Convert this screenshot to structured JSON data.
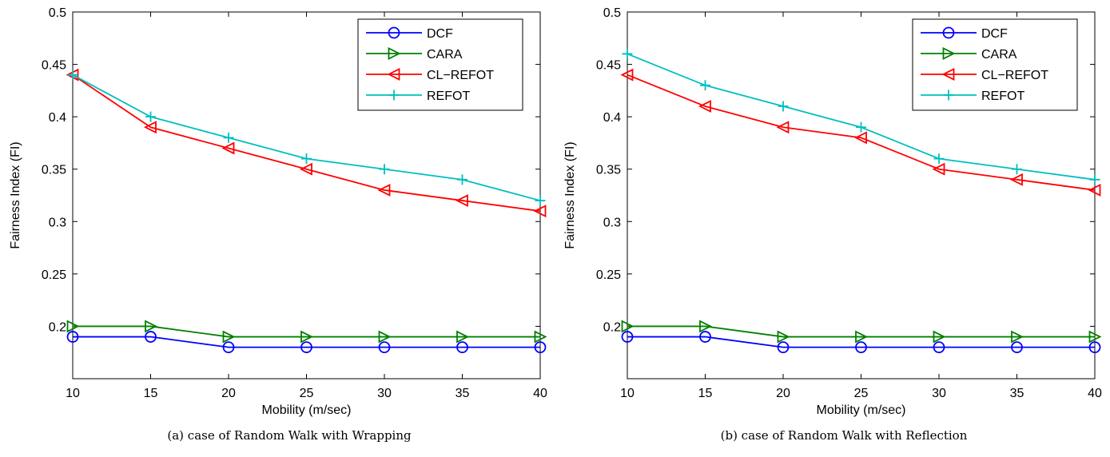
{
  "chart_data": [
    {
      "type": "line",
      "caption": "(a) case of Random Walk with Wrapping",
      "xlabel": "Mobility (m/sec)",
      "ylabel": "Fairness Index (FI)",
      "x": [
        10,
        15,
        20,
        25,
        30,
        35,
        40
      ],
      "xlim": [
        10,
        40
      ],
      "ylim": [
        0.15,
        0.5
      ],
      "xticks": [
        "10",
        "15",
        "20",
        "25",
        "30",
        "35",
        "40"
      ],
      "yticks": [
        "0.2",
        "0.25",
        "0.3",
        "0.35",
        "0.4",
        "0.45",
        "0.5"
      ],
      "ytick_values": [
        0.2,
        0.25,
        0.3,
        0.35,
        0.4,
        0.45,
        0.5
      ],
      "legend_position": "top-right",
      "series": [
        {
          "name": "DCF",
          "color": "#0000ff",
          "marker": "circle",
          "values": [
            0.19,
            0.19,
            0.18,
            0.18,
            0.18,
            0.18,
            0.18
          ]
        },
        {
          "name": "CARA",
          "color": "#008000",
          "marker": "triangle-right",
          "values": [
            0.2,
            0.2,
            0.19,
            0.19,
            0.19,
            0.19,
            0.19
          ]
        },
        {
          "name": "CL−REFOT",
          "color": "#ff0000",
          "marker": "triangle-left",
          "values": [
            0.44,
            0.39,
            0.37,
            0.35,
            0.33,
            0.32,
            0.31
          ]
        },
        {
          "name": "REFOT",
          "color": "#00bfbf",
          "marker": "plus",
          "values": [
            0.44,
            0.4,
            0.38,
            0.36,
            0.35,
            0.34,
            0.32
          ]
        }
      ]
    },
    {
      "type": "line",
      "caption": "(b) case of Random Walk with Reflection",
      "xlabel": "Mobility (m/sec)",
      "ylabel": "Fairness Index (FI)",
      "x": [
        10,
        15,
        20,
        25,
        30,
        35,
        40
      ],
      "xlim": [
        10,
        40
      ],
      "ylim": [
        0.15,
        0.5
      ],
      "xticks": [
        "10",
        "15",
        "20",
        "25",
        "30",
        "35",
        "40"
      ],
      "yticks": [
        "0.2",
        "0.25",
        "0.3",
        "0.35",
        "0.4",
        "0.45",
        "0.5"
      ],
      "ytick_values": [
        0.2,
        0.25,
        0.3,
        0.35,
        0.4,
        0.45,
        0.5
      ],
      "legend_position": "top-right",
      "series": [
        {
          "name": "DCF",
          "color": "#0000ff",
          "marker": "circle",
          "values": [
            0.19,
            0.19,
            0.18,
            0.18,
            0.18,
            0.18,
            0.18
          ]
        },
        {
          "name": "CARA",
          "color": "#008000",
          "marker": "triangle-right",
          "values": [
            0.2,
            0.2,
            0.19,
            0.19,
            0.19,
            0.19,
            0.19
          ]
        },
        {
          "name": "CL−REFOT",
          "color": "#ff0000",
          "marker": "triangle-left",
          "values": [
            0.44,
            0.41,
            0.39,
            0.38,
            0.35,
            0.34,
            0.33
          ]
        },
        {
          "name": "REFOT",
          "color": "#00bfbf",
          "marker": "plus",
          "values": [
            0.46,
            0.43,
            0.41,
            0.39,
            0.36,
            0.35,
            0.34
          ]
        }
      ]
    }
  ]
}
